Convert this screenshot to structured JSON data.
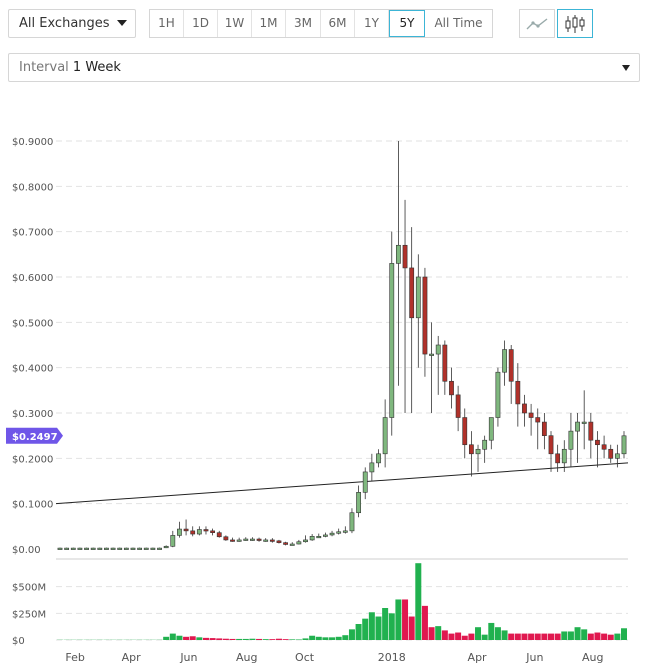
{
  "exchange_select": {
    "value": "All Exchanges"
  },
  "ranges": [
    {
      "label": "1H",
      "active": false
    },
    {
      "label": "1D",
      "active": false
    },
    {
      "label": "1W",
      "active": false
    },
    {
      "label": "1M",
      "active": false
    },
    {
      "label": "3M",
      "active": false
    },
    {
      "label": "6M",
      "active": false
    },
    {
      "label": "1Y",
      "active": false
    },
    {
      "label": "5Y",
      "active": true
    },
    {
      "label": "All Time",
      "active": false
    }
  ],
  "chart_type": {
    "options": [
      "line-chart-icon",
      "candlestick-chart-icon"
    ],
    "active": "candlestick-chart-icon"
  },
  "interval": {
    "label": "Interval",
    "value": "1 Week"
  },
  "colors": {
    "up": "#7fb77e",
    "down": "#b0312a",
    "vol_up": "#21b14f",
    "vol_down": "#e0184f",
    "price_badge": "#6f56e8",
    "accent": "#3cb5d6"
  },
  "current_price_label": "$0.2497",
  "chart_data": [
    {
      "type": "candlestick",
      "ylim": [
        0,
        0.9
      ],
      "yticks": [
        "$0.00",
        "$0.1000",
        "$0.2000",
        "$0.3000",
        "$0.4000",
        "$0.5000",
        "$0.6000",
        "$0.7000",
        "$0.8000",
        "$0.9000"
      ],
      "xticks": [
        "Feb",
        "Apr",
        "Jun",
        "Aug",
        "Oct",
        "2018",
        "Apr",
        "Jun",
        "Aug"
      ],
      "x": [
        "2017-01-16",
        "2017-01-23",
        "2017-01-30",
        "2017-02-06",
        "2017-02-13",
        "2017-02-20",
        "2017-02-27",
        "2017-03-06",
        "2017-03-13",
        "2017-03-20",
        "2017-03-27",
        "2017-04-03",
        "2017-04-10",
        "2017-04-17",
        "2017-04-24",
        "2017-05-01",
        "2017-05-08",
        "2017-05-15",
        "2017-05-22",
        "2017-05-29",
        "2017-06-05",
        "2017-06-12",
        "2017-06-19",
        "2017-06-26",
        "2017-07-03",
        "2017-07-10",
        "2017-07-17",
        "2017-07-24",
        "2017-07-31",
        "2017-08-07",
        "2017-08-14",
        "2017-08-21",
        "2017-08-28",
        "2017-09-04",
        "2017-09-11",
        "2017-09-18",
        "2017-09-25",
        "2017-10-02",
        "2017-10-09",
        "2017-10-16",
        "2017-10-23",
        "2017-10-30",
        "2017-11-06",
        "2017-11-13",
        "2017-11-20",
        "2017-11-27",
        "2017-12-04",
        "2017-12-11",
        "2017-12-18",
        "2017-12-25",
        "2018-01-01",
        "2018-01-08",
        "2018-01-15",
        "2018-01-22",
        "2018-01-29",
        "2018-02-05",
        "2018-02-12",
        "2018-02-19",
        "2018-02-26",
        "2018-03-05",
        "2018-03-12",
        "2018-03-19",
        "2018-03-26",
        "2018-04-02",
        "2018-04-09",
        "2018-04-16",
        "2018-04-23",
        "2018-04-30",
        "2018-05-07",
        "2018-05-14",
        "2018-05-21",
        "2018-05-28",
        "2018-06-04",
        "2018-06-11",
        "2018-06-18",
        "2018-06-25",
        "2018-07-02",
        "2018-07-09",
        "2018-07-16",
        "2018-07-23",
        "2018-07-30",
        "2018-08-06",
        "2018-08-13",
        "2018-08-20",
        "2018-08-27",
        "2018-09-03"
      ],
      "open": [
        0.002,
        0.002,
        0.002,
        0.002,
        0.002,
        0.002,
        0.002,
        0.002,
        0.002,
        0.002,
        0.002,
        0.002,
        0.002,
        0.002,
        0.002,
        0.002,
        0.003,
        0.006,
        0.03,
        0.044,
        0.04,
        0.033,
        0.043,
        0.04,
        0.036,
        0.027,
        0.02,
        0.018,
        0.02,
        0.022,
        0.022,
        0.019,
        0.02,
        0.018,
        0.014,
        0.01,
        0.011,
        0.016,
        0.02,
        0.028,
        0.028,
        0.031,
        0.035,
        0.038,
        0.04,
        0.08,
        0.125,
        0.17,
        0.19,
        0.21,
        0.29,
        0.63,
        0.67,
        0.62,
        0.51,
        0.6,
        0.43,
        0.43,
        0.45,
        0.37,
        0.34,
        0.29,
        0.23,
        0.21,
        0.22,
        0.24,
        0.29,
        0.39,
        0.44,
        0.37,
        0.32,
        0.3,
        0.29,
        0.28,
        0.25,
        0.21,
        0.19,
        0.22,
        0.26,
        0.28,
        0.28,
        0.24,
        0.23,
        0.22,
        0.2,
        0.21
      ],
      "close": [
        0.002,
        0.002,
        0.002,
        0.002,
        0.002,
        0.002,
        0.002,
        0.002,
        0.002,
        0.002,
        0.002,
        0.002,
        0.002,
        0.002,
        0.002,
        0.002,
        0.006,
        0.03,
        0.044,
        0.04,
        0.033,
        0.043,
        0.04,
        0.036,
        0.027,
        0.02,
        0.018,
        0.02,
        0.022,
        0.022,
        0.019,
        0.02,
        0.018,
        0.014,
        0.01,
        0.011,
        0.016,
        0.02,
        0.028,
        0.028,
        0.031,
        0.035,
        0.038,
        0.04,
        0.08,
        0.125,
        0.17,
        0.19,
        0.21,
        0.29,
        0.63,
        0.67,
        0.62,
        0.51,
        0.6,
        0.43,
        0.43,
        0.45,
        0.37,
        0.34,
        0.29,
        0.23,
        0.21,
        0.22,
        0.24,
        0.29,
        0.39,
        0.44,
        0.37,
        0.32,
        0.3,
        0.29,
        0.28,
        0.25,
        0.21,
        0.19,
        0.22,
        0.26,
        0.28,
        0.28,
        0.24,
        0.23,
        0.22,
        0.2,
        0.21,
        0.2497
      ],
      "high": [
        0.003,
        0.003,
        0.003,
        0.003,
        0.003,
        0.003,
        0.003,
        0.003,
        0.003,
        0.003,
        0.003,
        0.003,
        0.003,
        0.003,
        0.003,
        0.003,
        0.008,
        0.04,
        0.06,
        0.065,
        0.05,
        0.05,
        0.05,
        0.045,
        0.04,
        0.03,
        0.025,
        0.025,
        0.026,
        0.026,
        0.025,
        0.024,
        0.024,
        0.02,
        0.016,
        0.015,
        0.02,
        0.03,
        0.033,
        0.034,
        0.036,
        0.04,
        0.045,
        0.05,
        0.09,
        0.14,
        0.18,
        0.21,
        0.22,
        0.33,
        0.7,
        0.9,
        0.77,
        0.71,
        0.65,
        0.62,
        0.5,
        0.47,
        0.46,
        0.4,
        0.36,
        0.31,
        0.26,
        0.23,
        0.25,
        0.29,
        0.4,
        0.46,
        0.45,
        0.41,
        0.34,
        0.32,
        0.31,
        0.3,
        0.26,
        0.23,
        0.24,
        0.3,
        0.3,
        0.35,
        0.3,
        0.26,
        0.25,
        0.23,
        0.23,
        0.26
      ],
      "low": [
        0.001,
        0.001,
        0.001,
        0.001,
        0.001,
        0.001,
        0.001,
        0.001,
        0.001,
        0.001,
        0.001,
        0.001,
        0.001,
        0.001,
        0.001,
        0.001,
        0.002,
        0.004,
        0.025,
        0.03,
        0.028,
        0.03,
        0.032,
        0.03,
        0.025,
        0.018,
        0.016,
        0.016,
        0.018,
        0.018,
        0.016,
        0.016,
        0.014,
        0.012,
        0.008,
        0.009,
        0.01,
        0.014,
        0.018,
        0.025,
        0.026,
        0.028,
        0.032,
        0.034,
        0.035,
        0.07,
        0.11,
        0.15,
        0.18,
        0.18,
        0.25,
        0.36,
        0.3,
        0.3,
        0.4,
        0.38,
        0.3,
        0.34,
        0.34,
        0.31,
        0.26,
        0.2,
        0.16,
        0.17,
        0.19,
        0.22,
        0.27,
        0.36,
        0.32,
        0.27,
        0.27,
        0.25,
        0.22,
        0.22,
        0.17,
        0.17,
        0.17,
        0.18,
        0.19,
        0.22,
        0.2,
        0.18,
        0.2,
        0.19,
        0.18,
        0.2
      ],
      "trendline": {
        "from": [
          "2017-01-16",
          0.1
        ],
        "to": [
          "2018-09-03",
          0.19
        ]
      }
    },
    {
      "type": "bar",
      "ylim": [
        0,
        750
      ],
      "yticks": [
        "$0",
        "$250M",
        "$500M"
      ],
      "units": "M",
      "values": [
        2,
        2,
        2,
        2,
        2,
        2,
        2,
        2,
        2,
        2,
        2,
        2,
        2,
        2,
        2,
        2,
        30,
        60,
        40,
        30,
        35,
        25,
        20,
        18,
        15,
        12,
        10,
        10,
        10,
        12,
        10,
        8,
        8,
        12,
        8,
        6,
        5,
        15,
        40,
        30,
        25,
        25,
        30,
        45,
        100,
        150,
        200,
        260,
        220,
        300,
        250,
        380,
        380,
        220,
        720,
        320,
        120,
        130,
        90,
        60,
        70,
        40,
        60,
        120,
        50,
        160,
        120,
        90,
        60,
        60,
        60,
        60,
        60,
        60,
        60,
        60,
        80,
        80,
        120,
        100,
        60,
        70,
        60,
        50,
        60,
        110
      ],
      "up": [
        true,
        true,
        true,
        true,
        true,
        true,
        true,
        true,
        true,
        true,
        true,
        true,
        true,
        true,
        true,
        true,
        true,
        true,
        true,
        false,
        false,
        true,
        false,
        false,
        false,
        false,
        false,
        true,
        true,
        true,
        false,
        true,
        false,
        false,
        false,
        true,
        true,
        true,
        true,
        true,
        true,
        true,
        true,
        true,
        true,
        true,
        true,
        true,
        true,
        true,
        true,
        true,
        false,
        false,
        true,
        false,
        false,
        true,
        false,
        false,
        false,
        false,
        false,
        true,
        true,
        true,
        true,
        true,
        false,
        false,
        false,
        false,
        false,
        false,
        false,
        false,
        true,
        true,
        true,
        true,
        false,
        false,
        false,
        false,
        true,
        true
      ]
    }
  ]
}
